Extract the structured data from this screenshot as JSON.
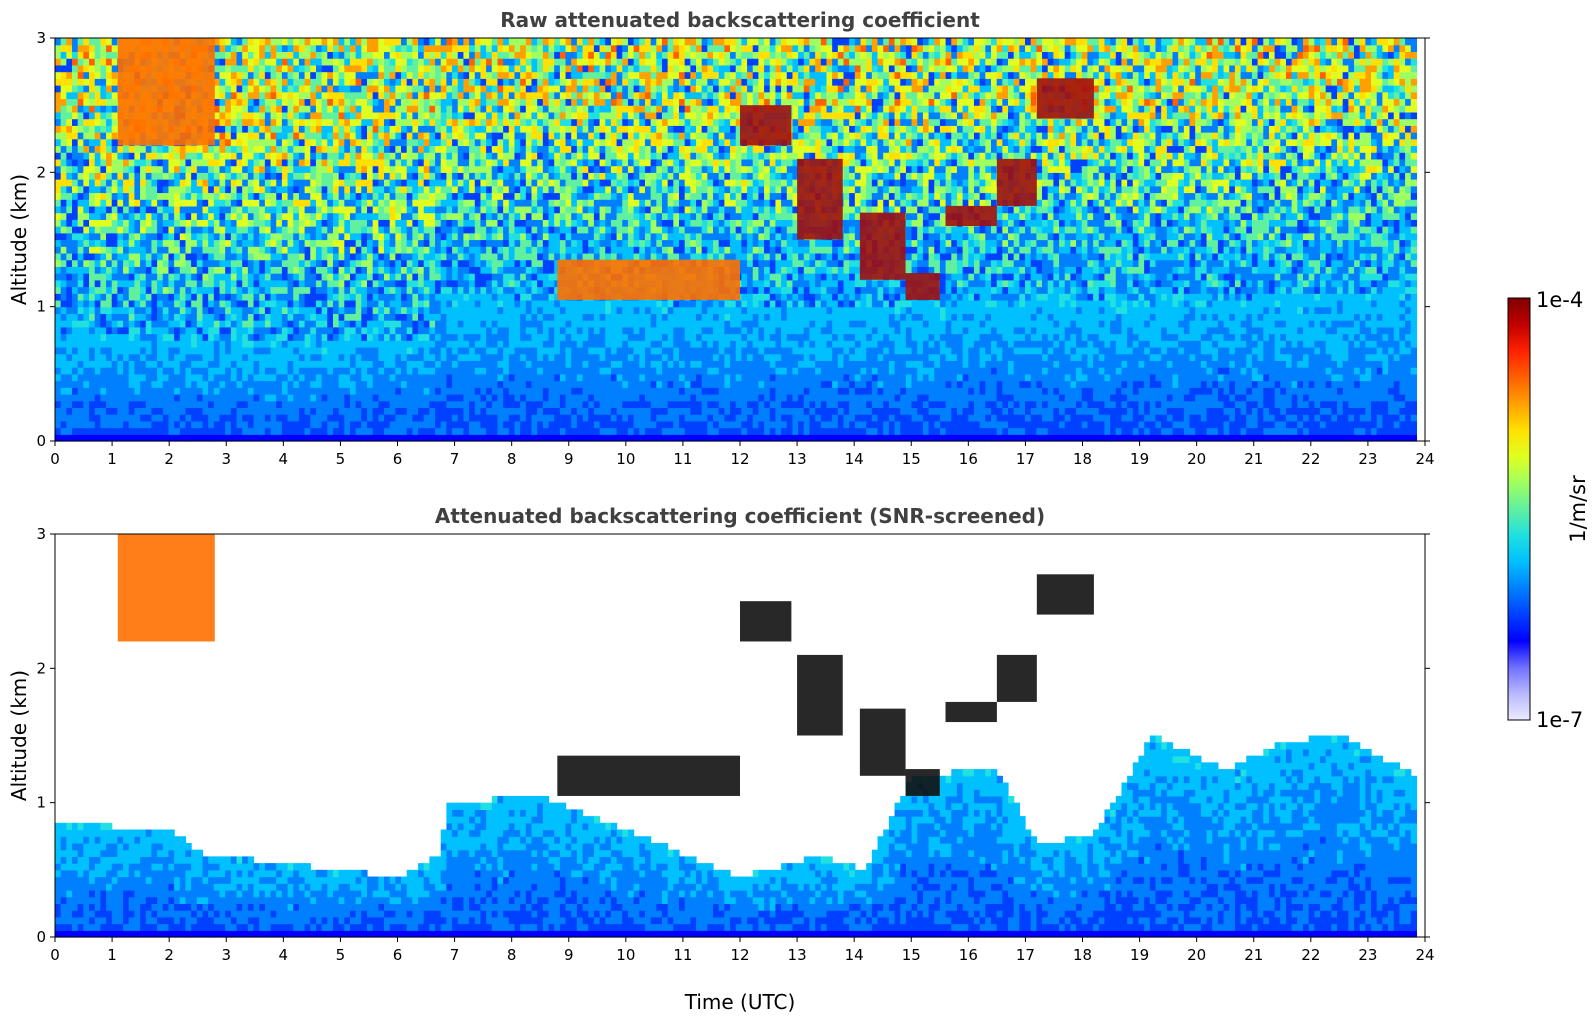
{
  "chart_data": [
    {
      "type": "heatmap",
      "title": "Raw attenuated backscattering coefficient",
      "ylabel": "Altitude (km)",
      "xlabel": "",
      "xlim": [
        0,
        24
      ],
      "ylim": [
        0,
        3
      ],
      "x_ticks": [
        "0",
        "1",
        "2",
        "3",
        "4",
        "5",
        "6",
        "7",
        "8",
        "9",
        "10",
        "11",
        "12",
        "13",
        "14",
        "15",
        "16",
        "17",
        "18",
        "19",
        "20",
        "21",
        "22",
        "23",
        "24"
      ],
      "y_ticks": [
        "0",
        "1",
        "2",
        "3"
      ],
      "data_extent_x": [
        0,
        23.85
      ],
      "screened": false,
      "boundary_layer_top_km": [
        [
          0,
          0.8
        ],
        [
          3,
          0.75
        ],
        [
          6.6,
          0.75
        ],
        [
          6.7,
          1.1
        ],
        [
          12,
          1.0
        ],
        [
          24,
          1.1
        ]
      ],
      "cloud_layers_km": [
        {
          "t": [
            1.1,
            2.8
          ],
          "alt": [
            2.2,
            3.0
          ],
          "level": "high"
        },
        {
          "t": [
            12.0,
            12.9
          ],
          "alt": [
            2.2,
            2.5
          ],
          "level": "max"
        },
        {
          "t": [
            13.0,
            13.8
          ],
          "alt": [
            1.5,
            2.1
          ],
          "level": "max"
        },
        {
          "t": [
            14.1,
            14.9
          ],
          "alt": [
            1.2,
            1.7
          ],
          "level": "max"
        },
        {
          "t": [
            14.9,
            15.5
          ],
          "alt": [
            1.05,
            1.25
          ],
          "level": "max"
        },
        {
          "t": [
            15.6,
            16.5
          ],
          "alt": [
            1.6,
            1.75
          ],
          "level": "max"
        },
        {
          "t": [
            16.5,
            17.2
          ],
          "alt": [
            1.75,
            2.1
          ],
          "level": "max"
        },
        {
          "t": [
            17.2,
            18.2
          ],
          "alt": [
            2.4,
            2.7
          ],
          "level": "max"
        },
        {
          "t": [
            8.8,
            12.0
          ],
          "alt": [
            1.05,
            1.35
          ],
          "level": "high"
        }
      ]
    },
    {
      "type": "heatmap",
      "title": "Attenuated backscattering coefficient (SNR-screened)",
      "ylabel": "Altitude (km)",
      "xlabel": "Time (UTC)",
      "xlim": [
        0,
        24
      ],
      "ylim": [
        0,
        3
      ],
      "x_ticks": [
        "0",
        "1",
        "2",
        "3",
        "4",
        "5",
        "6",
        "7",
        "8",
        "9",
        "10",
        "11",
        "12",
        "13",
        "14",
        "15",
        "16",
        "17",
        "18",
        "19",
        "20",
        "21",
        "22",
        "23",
        "24"
      ],
      "y_ticks": [
        "0",
        "1",
        "2",
        "3"
      ],
      "data_extent_x": [
        0,
        23.85
      ],
      "screened": true,
      "boundary_layer_top_km": [
        [
          0,
          0.85
        ],
        [
          2,
          0.8
        ],
        [
          2.6,
          0.62
        ],
        [
          4,
          0.55
        ],
        [
          6,
          0.45
        ],
        [
          6.7,
          0.6
        ],
        [
          6.9,
          1.0
        ],
        [
          8.5,
          1.05
        ],
        [
          12,
          0.45
        ],
        [
          13.4,
          0.6
        ],
        [
          14.2,
          0.5
        ],
        [
          15,
          1.2
        ],
        [
          16.5,
          1.25
        ],
        [
          17.2,
          0.7
        ],
        [
          18.2,
          0.75
        ],
        [
          19.2,
          1.5
        ],
        [
          20.5,
          1.25
        ],
        [
          21.5,
          1.45
        ],
        [
          22.5,
          1.5
        ],
        [
          23.85,
          1.2
        ]
      ],
      "cloud_layers_km": [
        {
          "t": [
            1.1,
            2.8
          ],
          "alt": [
            2.2,
            3.0
          ],
          "level": "high"
        },
        {
          "t": [
            12.0,
            12.9
          ],
          "alt": [
            2.2,
            2.5
          ],
          "level": "black"
        },
        {
          "t": [
            13.0,
            13.8
          ],
          "alt": [
            1.5,
            2.1
          ],
          "level": "black"
        },
        {
          "t": [
            14.1,
            14.9
          ],
          "alt": [
            1.2,
            1.7
          ],
          "level": "black"
        },
        {
          "t": [
            14.9,
            15.5
          ],
          "alt": [
            1.05,
            1.25
          ],
          "level": "black"
        },
        {
          "t": [
            15.6,
            16.5
          ],
          "alt": [
            1.6,
            1.75
          ],
          "level": "black"
        },
        {
          "t": [
            16.5,
            17.2
          ],
          "alt": [
            1.75,
            2.1
          ],
          "level": "black"
        },
        {
          "t": [
            17.2,
            18.2
          ],
          "alt": [
            2.4,
            2.7
          ],
          "level": "black"
        },
        {
          "t": [
            8.8,
            12.0
          ],
          "alt": [
            1.05,
            1.35
          ],
          "level": "black"
        }
      ]
    }
  ],
  "colorbar": {
    "min_label": "1e-7",
    "max_label": "1e-4",
    "label": "1/m/sr",
    "scale": "log",
    "colormap": "jet",
    "colors": [
      "#ececff",
      "#b8b8ff",
      "#7070ff",
      "#0000ff",
      "#0040ff",
      "#0080ff",
      "#00c0ff",
      "#20e0e0",
      "#60f0a0",
      "#a0ff60",
      "#e0ff20",
      "#ffe000",
      "#ffa000",
      "#ff6000",
      "#ff2000",
      "#c00000",
      "#800000"
    ]
  }
}
